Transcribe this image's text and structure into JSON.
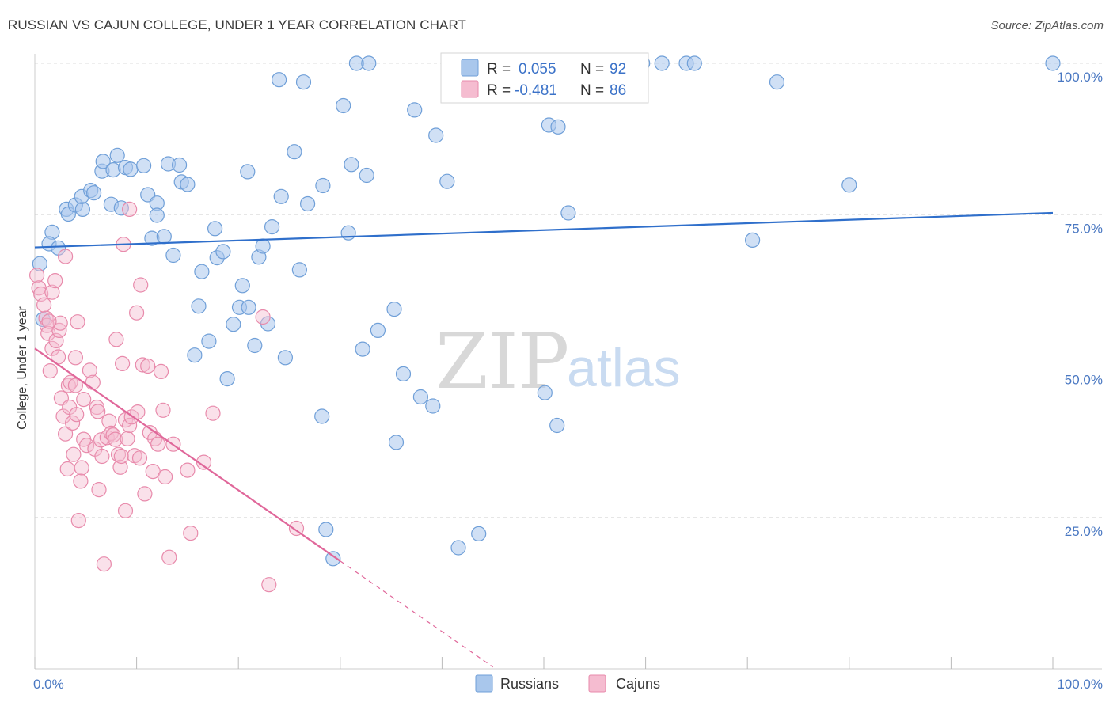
{
  "title": "RUSSIAN VS CAJUN COLLEGE, UNDER 1 YEAR CORRELATION CHART",
  "source": "Source: ZipAtlas.com",
  "watermark": {
    "zip": "ZIP",
    "atlas": "atlas"
  },
  "colors": {
    "blue_fill": "#a9c7ec",
    "blue_stroke": "#6f9fd8",
    "blue_line": "#2f6fcb",
    "pink_fill": "#f5bcd0",
    "pink_stroke": "#e88aab",
    "pink_line": "#e0679a",
    "grid": "#dddddd",
    "axis_label": "#4a78c2"
  },
  "legend": {
    "rows": [
      {
        "r_label": "R =",
        "r_value": "0.055",
        "n_label": "N =",
        "n_value": "92",
        "series": "russians"
      },
      {
        "r_label": "R =",
        "r_value": "-0.481",
        "n_label": "N =",
        "n_value": "86",
        "series": "cajuns"
      }
    ]
  },
  "bottom_legend": {
    "russians": "Russians",
    "cajuns": "Cajuns"
  },
  "chart_data": {
    "type": "scatter",
    "title": "RUSSIAN VS CAJUN COLLEGE, UNDER 1 YEAR CORRELATION CHART",
    "xlabel": "",
    "ylabel": "College, Under 1 year",
    "xlim": [
      0,
      100
    ],
    "ylim": [
      0,
      100
    ],
    "x_tick_labels": {
      "min": "0.0%",
      "max": "100.0%"
    },
    "y_ticks": [
      {
        "value": 25,
        "label": "25.0%"
      },
      {
        "value": 50,
        "label": "50.0%"
      },
      {
        "value": 75,
        "label": "75.0%"
      },
      {
        "value": 100,
        "label": "100.0%"
      }
    ],
    "grid": true,
    "series": [
      {
        "name": "Russians",
        "r": 0.055,
        "n": 92,
        "trend": {
          "x0": 0,
          "y0": 69.6,
          "x1": 100,
          "y1": 75.3
        },
        "points": [
          [
            1.7,
            72.1
          ],
          [
            1.4,
            70.2
          ],
          [
            2.3,
            69.5
          ],
          [
            3.1,
            75.9
          ],
          [
            3.3,
            75.1
          ],
          [
            4.0,
            76.6
          ],
          [
            4.7,
            75.9
          ],
          [
            4.6,
            78.0
          ],
          [
            5.5,
            79.0
          ],
          [
            5.8,
            78.6
          ],
          [
            6.6,
            82.2
          ],
          [
            6.7,
            83.8
          ],
          [
            7.5,
            76.7
          ],
          [
            7.7,
            82.4
          ],
          [
            8.1,
            84.8
          ],
          [
            8.5,
            76.1
          ],
          [
            8.9,
            82.8
          ],
          [
            9.4,
            82.5
          ],
          [
            10.7,
            83.1
          ],
          [
            11.1,
            78.3
          ],
          [
            12.0,
            76.9
          ],
          [
            12.0,
            74.9
          ],
          [
            11.5,
            71.1
          ],
          [
            12.7,
            71.4
          ],
          [
            13.1,
            83.4
          ],
          [
            14.2,
            83.2
          ],
          [
            14.4,
            80.4
          ],
          [
            15.0,
            80.0
          ],
          [
            13.6,
            68.3
          ],
          [
            16.4,
            65.6
          ],
          [
            16.1,
            59.9
          ],
          [
            17.1,
            54.1
          ],
          [
            15.7,
            51.8
          ],
          [
            17.7,
            72.7
          ],
          [
            17.9,
            67.9
          ],
          [
            18.5,
            68.9
          ],
          [
            18.9,
            47.9
          ],
          [
            19.5,
            56.9
          ],
          [
            20.1,
            59.7
          ],
          [
            20.4,
            63.3
          ],
          [
            21.0,
            59.7
          ],
          [
            21.6,
            53.4
          ],
          [
            20.9,
            82.1
          ],
          [
            22.0,
            68.0
          ],
          [
            22.4,
            69.8
          ],
          [
            22.9,
            57.0
          ],
          [
            23.3,
            73.0
          ],
          [
            24.0,
            97.3
          ],
          [
            24.2,
            78.0
          ],
          [
            24.6,
            51.4
          ],
          [
            25.5,
            85.4
          ],
          [
            26.0,
            65.9
          ],
          [
            26.4,
            96.9
          ],
          [
            26.8,
            76.8
          ],
          [
            28.3,
            79.8
          ],
          [
            28.2,
            41.7
          ],
          [
            28.6,
            23.0
          ],
          [
            29.3,
            18.2
          ],
          [
            30.3,
            93.0
          ],
          [
            30.8,
            72.0
          ],
          [
            31.1,
            83.3
          ],
          [
            31.6,
            100.0
          ],
          [
            32.2,
            52.8
          ],
          [
            32.6,
            81.5
          ],
          [
            32.8,
            100.0
          ],
          [
            33.7,
            55.9
          ],
          [
            35.3,
            59.4
          ],
          [
            35.5,
            37.4
          ],
          [
            36.2,
            48.7
          ],
          [
            37.3,
            92.3
          ],
          [
            37.9,
            44.9
          ],
          [
            39.1,
            43.4
          ],
          [
            39.4,
            88.1
          ],
          [
            40.5,
            80.5
          ],
          [
            41.6,
            20.0
          ],
          [
            43.6,
            22.3
          ],
          [
            47.0,
            100.0
          ],
          [
            50.1,
            45.6
          ],
          [
            50.5,
            89.8
          ],
          [
            51.4,
            89.5
          ],
          [
            51.3,
            40.2
          ],
          [
            52.4,
            75.3
          ],
          [
            59.7,
            100.0
          ],
          [
            61.6,
            100.0
          ],
          [
            64.0,
            100.0
          ],
          [
            64.8,
            100.0
          ],
          [
            70.5,
            70.8
          ],
          [
            72.9,
            96.9
          ],
          [
            80.0,
            79.9
          ],
          [
            100.0,
            100.0
          ],
          [
            0.5,
            66.9
          ],
          [
            0.8,
            57.7
          ]
        ]
      },
      {
        "name": "Cajuns",
        "r": -0.481,
        "n": 86,
        "trend": {
          "x0": 0,
          "y0": 52.9,
          "x1": 30,
          "y1": 17.8,
          "dash_to_x": 45,
          "dash_to_y": 0.3
        },
        "points": [
          [
            0.2,
            65.0
          ],
          [
            0.4,
            62.9
          ],
          [
            0.6,
            61.9
          ],
          [
            0.9,
            60.1
          ],
          [
            1.1,
            57.9
          ],
          [
            1.2,
            56.7
          ],
          [
            1.3,
            55.4
          ],
          [
            1.5,
            49.2
          ],
          [
            1.7,
            62.2
          ],
          [
            2.0,
            64.1
          ],
          [
            1.7,
            52.9
          ],
          [
            2.1,
            54.2
          ],
          [
            2.3,
            51.5
          ],
          [
            2.4,
            55.9
          ],
          [
            2.5,
            57.1
          ],
          [
            2.6,
            44.7
          ],
          [
            2.8,
            41.7
          ],
          [
            3.0,
            38.8
          ],
          [
            3.2,
            33.0
          ],
          [
            3.3,
            46.8
          ],
          [
            3.5,
            47.3
          ],
          [
            3.4,
            43.2
          ],
          [
            3.7,
            40.6
          ],
          [
            3.8,
            35.4
          ],
          [
            4.0,
            46.8
          ],
          [
            4.1,
            42.0
          ],
          [
            4.2,
            57.3
          ],
          [
            4.0,
            51.4
          ],
          [
            4.3,
            24.5
          ],
          [
            4.5,
            31.0
          ],
          [
            4.6,
            33.2
          ],
          [
            4.8,
            44.5
          ],
          [
            4.8,
            37.9
          ],
          [
            5.1,
            36.9
          ],
          [
            5.4,
            49.3
          ],
          [
            5.7,
            47.3
          ],
          [
            5.9,
            36.3
          ],
          [
            6.1,
            43.2
          ],
          [
            6.2,
            42.5
          ],
          [
            6.3,
            29.6
          ],
          [
            6.5,
            37.8
          ],
          [
            6.6,
            35.1
          ],
          [
            6.8,
            17.3
          ],
          [
            7.1,
            38.2
          ],
          [
            7.3,
            40.9
          ],
          [
            7.5,
            38.9
          ],
          [
            7.7,
            38.6
          ],
          [
            7.9,
            37.9
          ],
          [
            8.0,
            54.4
          ],
          [
            8.2,
            35.4
          ],
          [
            8.4,
            33.3
          ],
          [
            8.5,
            35.1
          ],
          [
            8.6,
            50.4
          ],
          [
            8.9,
            41.1
          ],
          [
            8.9,
            26.1
          ],
          [
            9.1,
            38.0
          ],
          [
            9.3,
            40.2
          ],
          [
            9.5,
            41.6
          ],
          [
            9.8,
            35.2
          ],
          [
            10.0,
            58.8
          ],
          [
            10.1,
            42.4
          ],
          [
            10.3,
            34.8
          ],
          [
            10.6,
            50.2
          ],
          [
            10.8,
            28.9
          ],
          [
            11.1,
            50.0
          ],
          [
            11.3,
            39.0
          ],
          [
            11.6,
            32.6
          ],
          [
            11.8,
            38.0
          ],
          [
            12.1,
            37.1
          ],
          [
            12.4,
            49.1
          ],
          [
            12.6,
            42.7
          ],
          [
            12.8,
            31.7
          ],
          [
            13.2,
            18.4
          ],
          [
            13.6,
            37.1
          ],
          [
            15.0,
            32.8
          ],
          [
            15.3,
            22.4
          ],
          [
            16.6,
            34.1
          ],
          [
            17.5,
            42.2
          ],
          [
            22.4,
            58.1
          ],
          [
            23.0,
            13.9
          ],
          [
            25.7,
            23.2
          ],
          [
            8.7,
            70.1
          ],
          [
            9.3,
            75.9
          ],
          [
            10.4,
            63.4
          ],
          [
            3.0,
            68.1
          ],
          [
            1.4,
            57.4
          ]
        ]
      }
    ]
  }
}
